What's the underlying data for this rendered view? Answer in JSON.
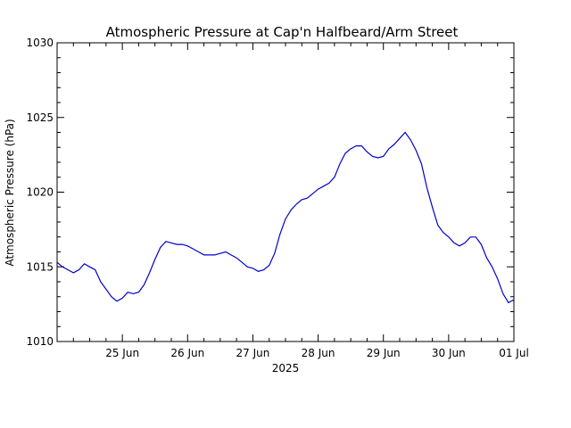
{
  "chart_data": {
    "type": "line",
    "title": "Atmospheric Pressure at Cap'n Halfbeard/Arm Street",
    "xlabel": "2025",
    "ylabel": "Atmospheric Pressure (hPa)",
    "xlim": [
      "2025-06-24T00:00",
      "2025-07-01T00:00"
    ],
    "ylim": [
      1010,
      1030
    ],
    "x_ticks": [
      {
        "value": "2025-06-25T00:00",
        "label": "25 Jun"
      },
      {
        "value": "2025-06-26T00:00",
        "label": "26 Jun"
      },
      {
        "value": "2025-06-27T00:00",
        "label": "27 Jun"
      },
      {
        "value": "2025-06-28T00:00",
        "label": "28 Jun"
      },
      {
        "value": "2025-06-29T00:00",
        "label": "29 Jun"
      },
      {
        "value": "2025-06-30T00:00",
        "label": "30 Jun"
      },
      {
        "value": "2025-07-01T00:00",
        "label": "01 Jul"
      }
    ],
    "y_ticks": [
      {
        "value": 1010,
        "label": "1010"
      },
      {
        "value": 1015,
        "label": "1015"
      },
      {
        "value": 1020,
        "label": "1020"
      },
      {
        "value": 1025,
        "label": "1025"
      },
      {
        "value": 1030,
        "label": "1030"
      }
    ],
    "grid": false,
    "line_color": "#0000cc",
    "series": [
      {
        "x": [
          "2025-06-24T00:00",
          "2025-06-24T02:00",
          "2025-06-24T04:00",
          "2025-06-24T06:00",
          "2025-06-24T08:00",
          "2025-06-24T10:00",
          "2025-06-24T12:00",
          "2025-06-24T14:00",
          "2025-06-24T16:00",
          "2025-06-24T18:00",
          "2025-06-24T20:00",
          "2025-06-24T22:00",
          "2025-06-25T00:00",
          "2025-06-25T02:00",
          "2025-06-25T04:00",
          "2025-06-25T06:00",
          "2025-06-25T08:00",
          "2025-06-25T10:00",
          "2025-06-25T12:00",
          "2025-06-25T14:00",
          "2025-06-25T16:00",
          "2025-06-25T18:00",
          "2025-06-25T20:00",
          "2025-06-25T22:00",
          "2025-06-26T00:00",
          "2025-06-26T02:00",
          "2025-06-26T04:00",
          "2025-06-26T06:00",
          "2025-06-26T08:00",
          "2025-06-26T10:00",
          "2025-06-26T12:00",
          "2025-06-26T14:00",
          "2025-06-26T16:00",
          "2025-06-26T18:00",
          "2025-06-26T20:00",
          "2025-06-26T22:00",
          "2025-06-27T00:00",
          "2025-06-27T02:00",
          "2025-06-27T04:00",
          "2025-06-27T06:00",
          "2025-06-27T08:00",
          "2025-06-27T10:00",
          "2025-06-27T12:00",
          "2025-06-27T14:00",
          "2025-06-27T16:00",
          "2025-06-27T18:00",
          "2025-06-27T20:00",
          "2025-06-27T22:00",
          "2025-06-28T00:00",
          "2025-06-28T02:00",
          "2025-06-28T04:00",
          "2025-06-28T06:00",
          "2025-06-28T08:00",
          "2025-06-28T10:00",
          "2025-06-28T12:00",
          "2025-06-28T14:00",
          "2025-06-28T16:00",
          "2025-06-28T18:00",
          "2025-06-28T20:00",
          "2025-06-28T22:00",
          "2025-06-29T00:00",
          "2025-06-29T02:00",
          "2025-06-29T04:00",
          "2025-06-29T06:00",
          "2025-06-29T08:00",
          "2025-06-29T10:00",
          "2025-06-29T12:00",
          "2025-06-29T14:00",
          "2025-06-29T16:00",
          "2025-06-29T18:00",
          "2025-06-29T20:00",
          "2025-06-29T22:00",
          "2025-06-30T00:00",
          "2025-06-30T02:00",
          "2025-06-30T04:00",
          "2025-06-30T06:00",
          "2025-06-30T08:00",
          "2025-06-30T10:00",
          "2025-06-30T12:00",
          "2025-06-30T14:00",
          "2025-06-30T16:00",
          "2025-06-30T18:00",
          "2025-06-30T20:00",
          "2025-06-30T22:00",
          "2025-07-01T00:00"
        ],
        "y": [
          1015.3,
          1015.0,
          1014.8,
          1014.6,
          1014.8,
          1015.2,
          1015.0,
          1014.8,
          1014.0,
          1013.5,
          1013.0,
          1012.7,
          1012.9,
          1013.3,
          1013.2,
          1013.3,
          1013.8,
          1014.6,
          1015.5,
          1016.3,
          1016.7,
          1016.6,
          1016.5,
          1016.5,
          1016.4,
          1016.2,
          1016.0,
          1015.8,
          1015.8,
          1015.8,
          1015.9,
          1016.0,
          1015.8,
          1015.6,
          1015.3,
          1015.0,
          1014.9,
          1014.7,
          1014.8,
          1015.1,
          1015.9,
          1017.2,
          1018.2,
          1018.8,
          1019.2,
          1019.5,
          1019.6,
          1019.9,
          1020.2,
          1020.4,
          1020.6,
          1021.0,
          1021.9,
          1022.6,
          1022.9,
          1023.1,
          1023.1,
          1022.7,
          1022.4,
          1022.3,
          1022.4,
          1022.9,
          1023.2,
          1023.6,
          1024.0,
          1023.5,
          1022.8,
          1021.9,
          1020.3,
          1019.0,
          1017.8,
          1017.3,
          1017.0,
          1016.6,
          1016.4,
          1016.6,
          1017.0,
          1017.0,
          1016.5,
          1015.6,
          1015.0,
          1014.2,
          1013.2,
          1012.6,
          1012.8
        ]
      }
    ]
  }
}
